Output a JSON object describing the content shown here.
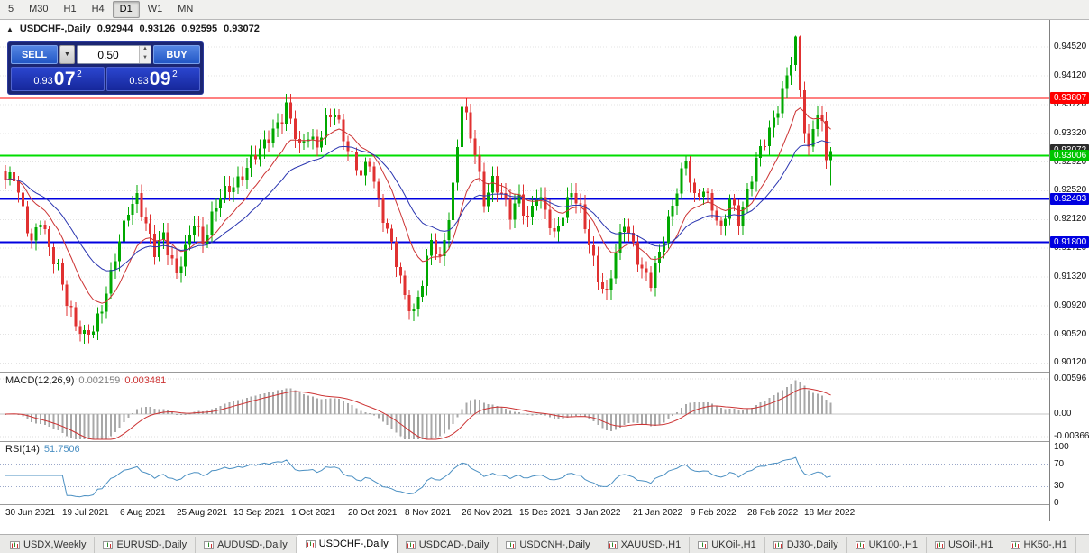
{
  "toolbar": {
    "timeframes": [
      "5",
      "M30",
      "H1",
      "H4",
      "D1",
      "W1",
      "MN"
    ],
    "active_timeframe": "D1"
  },
  "icons": {
    "collapse": "▲",
    "dropdown": "▼",
    "spin_up": "▲",
    "spin_down": "▼"
  },
  "chart": {
    "symbol_title": "USDCHF-,Daily",
    "open": "0.92944",
    "high": "0.93126",
    "low": "0.92595",
    "close": "0.93072"
  },
  "trade_panel": {
    "sell_label": "SELL",
    "buy_label": "BUY",
    "volume": "0.50",
    "sell_price_small": "0.93",
    "sell_price_big": "07",
    "sell_price_sup": "2",
    "buy_price_small": "0.93",
    "buy_price_big": "09",
    "buy_price_sup": "2"
  },
  "indicators": {
    "macd_label": "MACD(12,26,9)",
    "macd_value_main": "0.002159",
    "macd_value_signal": "0.003481",
    "macd_axis": [
      "0.00596",
      "0.00",
      "-0.00366"
    ],
    "rsi_label": "RSI(14)",
    "rsi_value": "51.7506",
    "rsi_axis": [
      "100",
      "70",
      "30",
      "0"
    ]
  },
  "price_axis": {
    "labels": [
      "0.94520",
      "0.94120",
      "0.93720",
      "0.93320",
      "0.92920",
      "0.92520",
      "0.92120",
      "0.91720",
      "0.91320",
      "0.90920",
      "0.90520",
      "0.90120"
    ],
    "badges": [
      {
        "text": "0.93807",
        "color": "#ff0000"
      },
      {
        "text": "0.93072",
        "color": "#2b2b2b"
      },
      {
        "text": "0.93006",
        "color": "#00c400"
      },
      {
        "text": "0.92403",
        "color": "#0000e0"
      },
      {
        "text": "0.91800",
        "color": "#0000e0"
      }
    ]
  },
  "dates": [
    "30 Jun 2021",
    "19 Jul 2021",
    "6 Aug 2021",
    "25 Aug 2021",
    "13 Sep 2021",
    "1 Oct 2021",
    "20 Oct 2021",
    "8 Nov 2021",
    "26 Nov 2021",
    "15 Dec 2021",
    "3 Jan 2022",
    "21 Jan 2022",
    "9 Feb 2022",
    "28 Feb 2022",
    "18 Mar 2022"
  ],
  "tabs": {
    "items": [
      "USDX,Weekly",
      "EURUSD-,Daily",
      "AUDUSD-,Daily",
      "USDCHF-,Daily",
      "USDCAD-,Daily",
      "USDCNH-,Daily",
      "XAUUSD-,H1",
      "UKOil-,H1",
      "DJ30-,Daily",
      "UK100-,H1",
      "USOil-,H1",
      "HK50-,H1"
    ],
    "active": "USDCHF-,Daily"
  },
  "colors": {
    "bull": "#00a800",
    "bear": "#e03131",
    "ma_fast": "#cc3333",
    "ma_slow": "#2a35b0",
    "macd_hist": "#a8a8a8",
    "macd_signal": "#cc3333",
    "rsi_line": "#4a8fc2",
    "grid": "#e3e3e3",
    "panel_border": "#9a9a9a"
  },
  "chart_data": {
    "type": "candlestick",
    "symbol": "USDCHF-",
    "timeframe": "Daily",
    "num_candles": 189,
    "visible_range": {
      "price_min": 0.9,
      "price_max": 0.949,
      "first_date": "30 Jun 2021",
      "last_date": "24 Mar 2022"
    },
    "last_candle": {
      "o": 0.92944,
      "h": 0.93126,
      "l": 0.92595,
      "c": 0.93072
    },
    "bid_price": 0.93072,
    "levels": [
      {
        "price": 0.93807,
        "color": "#ff0000",
        "width": 1
      },
      {
        "price": 0.93006,
        "color": "#00dd00",
        "width": 2
      },
      {
        "price": 0.92403,
        "color": "#0000e0",
        "width": 2
      },
      {
        "price": 0.918,
        "color": "#0000e0",
        "width": 2
      }
    ],
    "close_anchors": [
      [
        0,
        0.9262
      ],
      [
        2,
        0.9272
      ],
      [
        4,
        0.923
      ],
      [
        6,
        0.918
      ],
      [
        8,
        0.9208
      ],
      [
        10,
        0.917
      ],
      [
        12,
        0.915
      ],
      [
        14,
        0.91
      ],
      [
        16,
        0.906
      ],
      [
        18,
        0.9048
      ],
      [
        20,
        0.9065
      ],
      [
        22,
        0.909
      ],
      [
        24,
        0.913
      ],
      [
        26,
        0.918
      ],
      [
        28,
        0.923
      ],
      [
        30,
        0.9245
      ],
      [
        32,
        0.92
      ],
      [
        34,
        0.9165
      ],
      [
        36,
        0.9195
      ],
      [
        39,
        0.9135
      ],
      [
        41,
        0.9165
      ],
      [
        43,
        0.921
      ],
      [
        45,
        0.9185
      ],
      [
        47,
        0.9215
      ],
      [
        49,
        0.924
      ],
      [
        52,
        0.9262
      ],
      [
        55,
        0.9285
      ],
      [
        58,
        0.9305
      ],
      [
        61,
        0.934
      ],
      [
        63,
        0.9355
      ],
      [
        64,
        0.9368
      ],
      [
        65,
        0.9345
      ],
      [
        67,
        0.931
      ],
      [
        69,
        0.9335
      ],
      [
        71,
        0.9315
      ],
      [
        73,
        0.9345
      ],
      [
        75,
        0.936
      ],
      [
        77,
        0.933
      ],
      [
        79,
        0.93
      ],
      [
        81,
        0.927
      ],
      [
        83,
        0.929
      ],
      [
        85,
        0.924
      ],
      [
        87,
        0.92
      ],
      [
        89,
        0.915
      ],
      [
        91,
        0.91
      ],
      [
        93,
        0.9085
      ],
      [
        95,
        0.913
      ],
      [
        97,
        0.918
      ],
      [
        99,
        0.915
      ],
      [
        101,
        0.922
      ],
      [
        102,
        0.926
      ],
      [
        103,
        0.932
      ],
      [
        104,
        0.9373
      ],
      [
        105,
        0.935
      ],
      [
        107,
        0.93
      ],
      [
        109,
        0.924
      ],
      [
        111,
        0.927
      ],
      [
        113,
        0.9245
      ],
      [
        115,
        0.9215
      ],
      [
        117,
        0.9245
      ],
      [
        119,
        0.9215
      ],
      [
        121,
        0.9245
      ],
      [
        123,
        0.922
      ],
      [
        125,
        0.919
      ],
      [
        127,
        0.9225
      ],
      [
        129,
        0.925
      ],
      [
        131,
        0.922
      ],
      [
        133,
        0.918
      ],
      [
        135,
        0.9135
      ],
      [
        137,
        0.9105
      ],
      [
        139,
        0.916
      ],
      [
        141,
        0.921
      ],
      [
        143,
        0.918
      ],
      [
        145,
        0.914
      ],
      [
        147,
        0.912
      ],
      [
        149,
        0.9165
      ],
      [
        151,
        0.9215
      ],
      [
        153,
        0.9255
      ],
      [
        155,
        0.929
      ],
      [
        157,
        0.924
      ],
      [
        159,
        0.926
      ],
      [
        161,
        0.923
      ],
      [
        163,
        0.919
      ],
      [
        165,
        0.924
      ],
      [
        167,
        0.9215
      ],
      [
        169,
        0.925
      ],
      [
        171,
        0.929
      ],
      [
        173,
        0.932
      ],
      [
        175,
        0.9355
      ],
      [
        177,
        0.939
      ],
      [
        179,
        0.943
      ],
      [
        180,
        0.9455
      ],
      [
        181,
        0.939
      ],
      [
        182,
        0.934
      ],
      [
        183,
        0.931
      ],
      [
        184,
        0.9345
      ],
      [
        185,
        0.9365
      ],
      [
        186,
        0.934
      ],
      [
        187,
        0.92944
      ],
      [
        188,
        0.93072
      ]
    ],
    "moving_averages": [
      {
        "type": "ema",
        "period": 12,
        "color": "#cc3333"
      },
      {
        "type": "ema",
        "period": 26,
        "color": "#2a35b0"
      }
    ],
    "macd": {
      "fast": 12,
      "slow": 26,
      "signal": 9,
      "current_main": 0.002159,
      "current_signal": 0.003481,
      "axis_max": 0.00596,
      "axis_min": -0.00366
    },
    "rsi": {
      "period": 14,
      "current": 51.7506,
      "levels": [
        70,
        30
      ]
    }
  }
}
